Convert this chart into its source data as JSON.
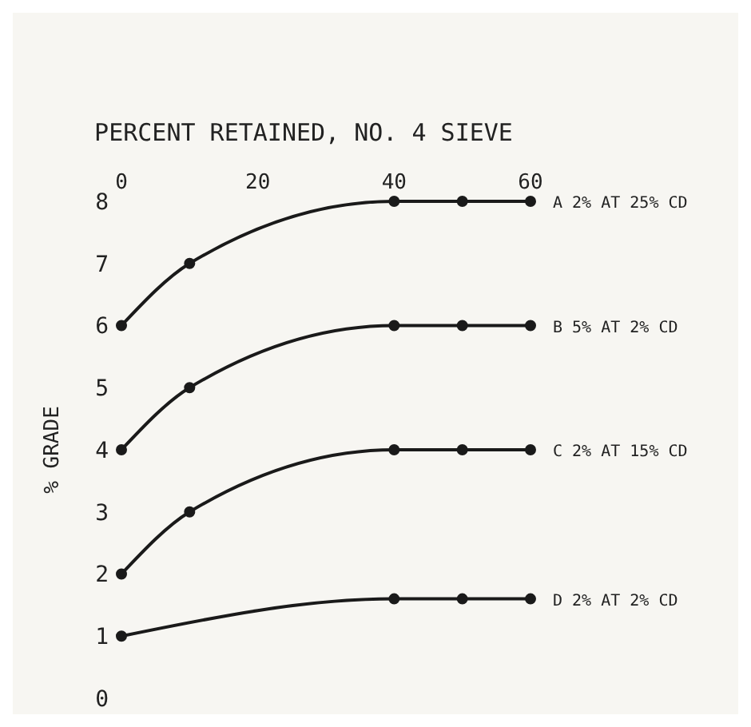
{
  "chart_data": {
    "type": "line",
    "xlabel": "PERCENT RETAINED, NO. 4 SIEVE",
    "ylabel": "% GRADE",
    "xlim": [
      0,
      60
    ],
    "xticks": [
      0,
      20,
      40,
      60
    ],
    "ylim": [
      0,
      8
    ],
    "yticks": [
      0,
      1,
      2,
      3,
      4,
      5,
      6,
      7,
      8
    ],
    "grid": false,
    "legend": false,
    "marker": "circle",
    "line_style": "solid",
    "series": [
      {
        "name": "A 2% AT 25% CD",
        "color": "#1a1a1a",
        "x": [
          0,
          10,
          40,
          50,
          60
        ],
        "values": [
          6,
          7,
          8,
          8,
          8
        ]
      },
      {
        "name": "B 5% AT 2% CD",
        "color": "#1a1a1a",
        "x": [
          0,
          10,
          40,
          50,
          60
        ],
        "values": [
          4,
          5,
          6,
          6,
          6
        ]
      },
      {
        "name": "C 2% AT 15% CD",
        "color": "#1a1a1a",
        "x": [
          0,
          10,
          40,
          50,
          60
        ],
        "values": [
          2,
          3,
          4,
          4,
          4
        ]
      },
      {
        "name": "D 2% AT 2% CD",
        "color": "#1a1a1a",
        "x": [
          0,
          40,
          50,
          60
        ],
        "values": [
          1,
          1.6,
          1.6,
          1.6
        ]
      }
    ]
  }
}
